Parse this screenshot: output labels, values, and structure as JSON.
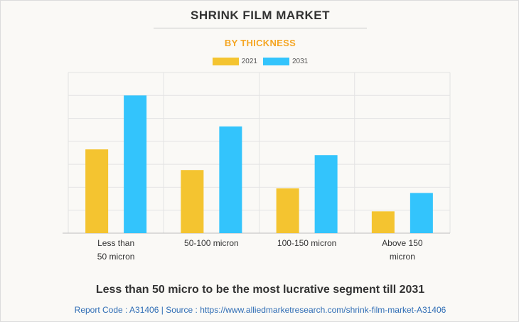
{
  "chart_data": {
    "type": "bar",
    "title": "SHRINK FILM MARKET",
    "subtitle": "BY THICKNESS",
    "categories": [
      [
        "Less than",
        "50 micron"
      ],
      [
        "50-100 micron"
      ],
      [
        "100-150 micron"
      ],
      [
        "Above 150",
        "micron"
      ]
    ],
    "series": [
      {
        "name": "2021",
        "color": "#f4c430",
        "values": [
          3.65,
          2.75,
          1.95,
          0.95
        ]
      },
      {
        "name": "2031",
        "color": "#33c4fc",
        "values": [
          6.0,
          4.65,
          3.4,
          1.75
        ]
      }
    ],
    "ylim": [
      0,
      7
    ],
    "grid": true,
    "legend_position": "top-center",
    "xlabel": "",
    "ylabel": ""
  },
  "headline": "Less than 50 micro to be the most lucrative segment till 2031",
  "footer": "Report Code : A31406  |  Source : https://www.alliedmarketresearch.com/shrink-film-market-A31406"
}
